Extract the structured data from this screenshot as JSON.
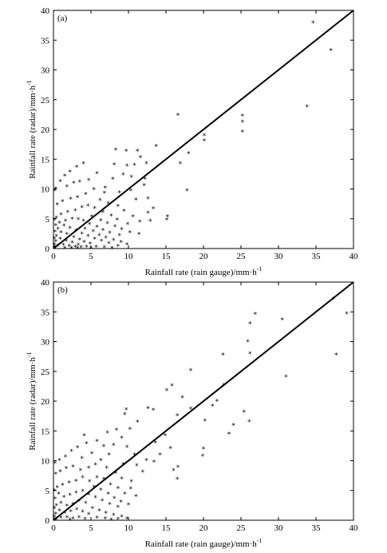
{
  "chart_data": [
    {
      "type": "scatter",
      "panel_label": "(a)",
      "xlabel": "Rainfall rate (rain gauge)/mm·h",
      "xlabel_sup": "-1",
      "ylabel": "Rainfall rate (radar)/mm·h",
      "ylabel_sup": "-1",
      "xlim": [
        0,
        40
      ],
      "ylim": [
        0,
        40
      ],
      "xticks": [
        0,
        5,
        10,
        15,
        20,
        25,
        30,
        35,
        40
      ],
      "yticks": [
        0,
        5,
        10,
        15,
        20,
        25,
        30,
        35,
        40
      ],
      "reference_line": [
        [
          0,
          0
        ],
        [
          40,
          40
        ]
      ],
      "marker": "*",
      "points": [
        [
          34.6,
          37.9
        ],
        [
          37.0,
          33.3
        ],
        [
          33.8,
          23.8
        ],
        [
          16.6,
          22.4
        ],
        [
          25.2,
          22.3
        ],
        [
          25.2,
          21.3
        ],
        [
          25.2,
          19.6
        ],
        [
          20.1,
          19.0
        ],
        [
          20.1,
          18.1
        ],
        [
          8.3,
          16.6
        ],
        [
          9.7,
          16.4
        ],
        [
          11.2,
          16.4
        ],
        [
          11.6,
          15.3
        ],
        [
          13.7,
          17.2
        ],
        [
          16.9,
          14.3
        ],
        [
          18.0,
          16.0
        ],
        [
          12.4,
          14.3
        ],
        [
          17.8,
          9.7
        ],
        [
          15.2,
          5.4
        ],
        [
          15.1,
          4.8
        ],
        [
          13.3,
          6.7
        ],
        [
          12.6,
          6.0
        ],
        [
          12.9,
          4.6
        ],
        [
          11.0,
          8.2
        ],
        [
          12.1,
          10.6
        ],
        [
          12.6,
          8.4
        ],
        [
          9.8,
          13.9
        ],
        [
          10.8,
          14.0
        ],
        [
          8.1,
          14.1
        ],
        [
          7.9,
          11.7
        ],
        [
          9.3,
          12.4
        ],
        [
          10.4,
          12.0
        ],
        [
          6.8,
          9.3
        ],
        [
          8.8,
          9.4
        ],
        [
          10.3,
          9.7
        ],
        [
          12.2,
          11.7
        ],
        [
          4.0,
          14.3
        ],
        [
          3.1,
          13.7
        ],
        [
          2.2,
          12.9
        ],
        [
          1.5,
          12.2
        ],
        [
          0.9,
          11.3
        ],
        [
          0.3,
          10.1
        ],
        [
          0.2,
          9.7
        ],
        [
          4.7,
          11.5
        ],
        [
          5.8,
          12.6
        ],
        [
          3.5,
          11.2
        ],
        [
          2.7,
          11.0
        ],
        [
          1.8,
          10.4
        ],
        [
          6.9,
          10.2
        ],
        [
          5.4,
          9.9
        ],
        [
          4.3,
          9.1
        ],
        [
          3.2,
          8.6
        ],
        [
          2.3,
          8.3
        ],
        [
          1.2,
          7.9
        ],
        [
          0.5,
          7.4
        ],
        [
          6.2,
          8.1
        ],
        [
          7.3,
          7.6
        ],
        [
          8.6,
          7.1
        ],
        [
          9.4,
          6.3
        ],
        [
          10.6,
          5.4
        ],
        [
          11.5,
          4.5
        ],
        [
          9.9,
          4.1
        ],
        [
          8.5,
          4.8
        ],
        [
          7.7,
          5.5
        ],
        [
          6.6,
          6.1
        ],
        [
          5.5,
          6.8
        ],
        [
          4.6,
          7.2
        ],
        [
          3.8,
          6.9
        ],
        [
          2.9,
          6.4
        ],
        [
          1.9,
          6.1
        ],
        [
          1.0,
          5.7
        ],
        [
          0.4,
          5.2
        ],
        [
          0.1,
          4.8
        ],
        [
          5.1,
          5.4
        ],
        [
          6.3,
          4.7
        ],
        [
          7.2,
          4.2
        ],
        [
          8.2,
          3.7
        ],
        [
          9.1,
          3.2
        ],
        [
          10.2,
          2.7
        ],
        [
          11.4,
          2.4
        ],
        [
          8.8,
          2.2
        ],
        [
          7.5,
          2.6
        ],
        [
          6.6,
          3.1
        ],
        [
          5.8,
          3.6
        ],
        [
          4.8,
          4.1
        ],
        [
          4.0,
          4.6
        ],
        [
          3.3,
          4.9
        ],
        [
          2.5,
          5.0
        ],
        [
          1.6,
          4.6
        ],
        [
          0.8,
          4.3
        ],
        [
          0.3,
          3.9
        ],
        [
          5.3,
          2.9
        ],
        [
          6.1,
          2.2
        ],
        [
          7.0,
          1.8
        ],
        [
          8.0,
          1.4
        ],
        [
          9.0,
          1.1
        ],
        [
          9.8,
          0.7
        ],
        [
          8.6,
          0.4
        ],
        [
          7.4,
          0.9
        ],
        [
          6.4,
          1.3
        ],
        [
          5.5,
          1.6
        ],
        [
          4.6,
          2.1
        ],
        [
          3.8,
          2.5
        ],
        [
          3.0,
          3.0
        ],
        [
          2.2,
          3.4
        ],
        [
          1.4,
          3.8
        ],
        [
          0.6,
          3.3
        ],
        [
          0.2,
          2.8
        ],
        [
          4.2,
          3.3
        ],
        [
          3.5,
          1.5
        ],
        [
          2.7,
          1.9
        ],
        [
          1.8,
          2.4
        ],
        [
          1.0,
          2.7
        ],
        [
          0.4,
          2.1
        ],
        [
          0.1,
          1.7
        ],
        [
          4.9,
          0.8
        ],
        [
          4.1,
          1.1
        ],
        [
          3.3,
          0.6
        ],
        [
          2.5,
          1.0
        ],
        [
          1.7,
          1.3
        ],
        [
          0.9,
          1.6
        ],
        [
          0.3,
          1.2
        ],
        [
          0.1,
          0.7
        ],
        [
          5.7,
          0.3
        ],
        [
          6.8,
          0.2
        ],
        [
          4.4,
          0.3
        ],
        [
          3.7,
          0.2
        ],
        [
          2.9,
          0.3
        ],
        [
          2.1,
          0.4
        ],
        [
          1.3,
          0.6
        ],
        [
          0.6,
          0.5
        ],
        [
          0.2,
          0.3
        ],
        [
          0.1,
          0.1
        ],
        [
          1.5,
          0.1
        ],
        [
          2.4,
          0.1
        ],
        [
          3.2,
          0.1
        ],
        [
          5.0,
          0.1
        ],
        [
          7.8,
          0.1
        ]
      ]
    },
    {
      "type": "scatter",
      "panel_label": "(b)",
      "xlabel": "Rainfall rate (rain gauge)/mm·h",
      "xlabel_sup": "-1",
      "ylabel": "Rainfall rate (radar)/mm·h",
      "ylabel_sup": "-1",
      "xlim": [
        0,
        40
      ],
      "ylim": [
        0,
        40
      ],
      "xticks": [
        0,
        5,
        10,
        15,
        20,
        25,
        30,
        35,
        40
      ],
      "yticks": [
        0,
        5,
        10,
        15,
        20,
        25,
        30,
        35,
        40
      ],
      "reference_line": [
        [
          0,
          0
        ],
        [
          40,
          40
        ]
      ],
      "marker": "*",
      "points": [
        [
          37.3,
          37.2
        ],
        [
          39.1,
          34.7
        ],
        [
          37.7,
          27.8
        ],
        [
          26.9,
          34.6
        ],
        [
          26.2,
          33.0
        ],
        [
          30.5,
          33.7
        ],
        [
          25.9,
          30.0
        ],
        [
          26.2,
          28.0
        ],
        [
          22.6,
          27.8
        ],
        [
          31.0,
          24.1
        ],
        [
          22.7,
          22.7
        ],
        [
          18.3,
          25.2
        ],
        [
          25.4,
          18.2
        ],
        [
          24.0,
          16.0
        ],
        [
          26.1,
          16.6
        ],
        [
          21.8,
          20.0
        ],
        [
          21.2,
          19.2
        ],
        [
          15.8,
          22.6
        ],
        [
          15.1,
          21.8
        ],
        [
          17.2,
          20.6
        ],
        [
          20.2,
          16.7
        ],
        [
          20.0,
          12.0
        ],
        [
          19.9,
          10.8
        ],
        [
          23.4,
          14.5
        ],
        [
          18.3,
          18.7
        ],
        [
          16.5,
          17.6
        ],
        [
          14.9,
          14.2
        ],
        [
          15.6,
          12.1
        ],
        [
          16.6,
          8.9
        ],
        [
          16.0,
          8.4
        ],
        [
          16.5,
          6.9
        ],
        [
          13.3,
          18.5
        ],
        [
          12.6,
          18.8
        ],
        [
          13.6,
          13.0
        ],
        [
          14.2,
          11.0
        ],
        [
          12.4,
          10.1
        ],
        [
          13.4,
          9.8
        ],
        [
          11.9,
          8.1
        ],
        [
          11.2,
          16.5
        ],
        [
          9.7,
          18.6
        ],
        [
          9.5,
          17.8
        ],
        [
          10.2,
          15.3
        ],
        [
          9.1,
          13.8
        ],
        [
          9.8,
          12.3
        ],
        [
          10.8,
          11.0
        ],
        [
          11.1,
          9.2
        ],
        [
          10.4,
          6.5
        ],
        [
          9.3,
          9.4
        ],
        [
          8.4,
          15.2
        ],
        [
          8.0,
          12.6
        ],
        [
          7.4,
          11.0
        ],
        [
          7.2,
          14.7
        ],
        [
          6.7,
          12.4
        ],
        [
          5.8,
          13.3
        ],
        [
          4.4,
          12.9
        ],
        [
          5.1,
          11.2
        ],
        [
          4.1,
          14.2
        ],
        [
          3.2,
          12.2
        ],
        [
          2.4,
          11.6
        ],
        [
          1.6,
          10.7
        ],
        [
          0.8,
          10.1
        ],
        [
          0.2,
          9.6
        ],
        [
          3.8,
          10.4
        ],
        [
          6.3,
          10.1
        ],
        [
          5.6,
          9.3
        ],
        [
          4.7,
          8.8
        ],
        [
          3.6,
          8.4
        ],
        [
          2.6,
          9.0
        ],
        [
          1.7,
          8.7
        ],
        [
          0.9,
          8.2
        ],
        [
          0.3,
          7.8
        ],
        [
          7.1,
          8.8
        ],
        [
          8.3,
          7.9
        ],
        [
          9.1,
          7.0
        ],
        [
          10.3,
          5.3
        ],
        [
          11.0,
          4.0
        ],
        [
          9.5,
          4.4
        ],
        [
          8.6,
          5.4
        ],
        [
          7.6,
          6.0
        ],
        [
          6.7,
          6.9
        ],
        [
          5.8,
          7.2
        ],
        [
          4.8,
          6.5
        ],
        [
          3.9,
          7.2
        ],
        [
          3.0,
          6.6
        ],
        [
          2.1,
          6.3
        ],
        [
          1.2,
          5.9
        ],
        [
          0.5,
          5.5
        ],
        [
          0.1,
          5.0
        ],
        [
          5.4,
          5.6
        ],
        [
          6.3,
          5.1
        ],
        [
          7.3,
          4.4
        ],
        [
          8.1,
          3.7
        ],
        [
          9.0,
          3.1
        ],
        [
          10.0,
          2.6
        ],
        [
          8.6,
          2.2
        ],
        [
          7.5,
          2.7
        ],
        [
          6.5,
          3.3
        ],
        [
          5.6,
          3.8
        ],
        [
          4.7,
          4.3
        ],
        [
          3.9,
          4.9
        ],
        [
          3.0,
          4.6
        ],
        [
          2.2,
          4.2
        ],
        [
          1.4,
          3.9
        ],
        [
          0.7,
          4.4
        ],
        [
          0.2,
          3.6
        ],
        [
          4.3,
          2.9
        ],
        [
          3.4,
          3.2
        ],
        [
          2.6,
          2.7
        ],
        [
          1.8,
          2.4
        ],
        [
          1.0,
          2.9
        ],
        [
          0.4,
          2.5
        ],
        [
          0.1,
          2.0
        ],
        [
          5.2,
          2.0
        ],
        [
          6.1,
          1.6
        ],
        [
          7.0,
          1.2
        ],
        [
          8.0,
          0.9
        ],
        [
          9.1,
          0.6
        ],
        [
          9.8,
          0.3
        ],
        [
          4.7,
          1.0
        ],
        [
          3.9,
          1.4
        ],
        [
          3.1,
          1.8
        ],
        [
          2.3,
          1.5
        ],
        [
          1.5,
          1.2
        ],
        [
          0.8,
          1.6
        ],
        [
          0.3,
          1.1
        ],
        [
          0.1,
          0.6
        ],
        [
          5.8,
          0.4
        ],
        [
          6.9,
          0.3
        ],
        [
          4.2,
          0.2
        ],
        [
          3.4,
          0.5
        ],
        [
          2.6,
          0.3
        ],
        [
          1.8,
          0.5
        ],
        [
          1.0,
          0.4
        ],
        [
          0.4,
          0.2
        ],
        [
          0.1,
          0.1
        ],
        [
          7.7,
          0.1
        ],
        [
          8.6,
          0.2
        ],
        [
          2.2,
          0.1
        ]
      ]
    }
  ]
}
